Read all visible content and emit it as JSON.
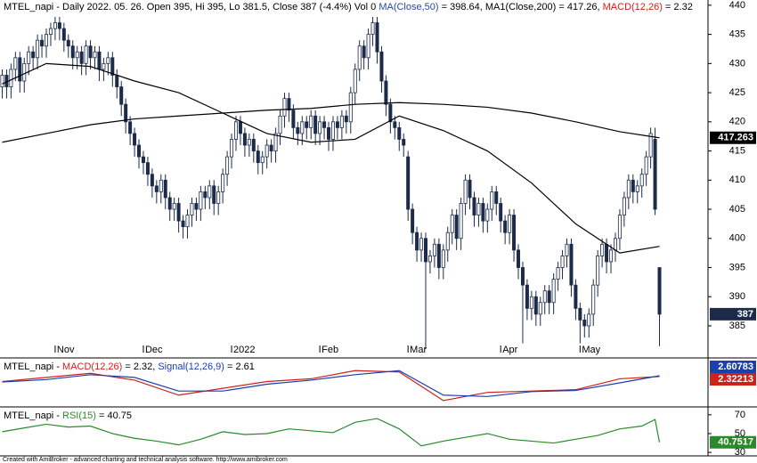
{
  "chart_data": [
    {
      "type": "candlestick",
      "title": [
        {
          "text": "MTEL_napi - Daily 2022. 05. 26. Open 395, Hi 395, Lo 381.5, Close 387 (-4.4%) Vol 0 ",
          "color": "#000000"
        },
        {
          "text": "MA(Close,50)",
          "color": "#2a4a9a"
        },
        {
          "text": " = 398.64, MA1(Close,200) = 417.26, ",
          "color": "#000000"
        },
        {
          "text": "MACD(12,26)",
          "color": "#d0201a"
        },
        {
          "text": " = 2.32",
          "color": "#000000"
        }
      ],
      "open": [
        426,
        428,
        426,
        429,
        431,
        427,
        430,
        432,
        431,
        434,
        433,
        435,
        436,
        437,
        436,
        434,
        433,
        431,
        432,
        430,
        433,
        431,
        432,
        429,
        430,
        431,
        428,
        426,
        423,
        420,
        418,
        416,
        414,
        413,
        411,
        409,
        408,
        410,
        407,
        405,
        406,
        403,
        402,
        404,
        406,
        405,
        408,
        407,
        409,
        406,
        408,
        411,
        414,
        417,
        420,
        418,
        416,
        417,
        415,
        413,
        414,
        416,
        415,
        418,
        421,
        424,
        422,
        419,
        418,
        420,
        419,
        421,
        418,
        420,
        419,
        417,
        420,
        419,
        421,
        420,
        425,
        429,
        433,
        431,
        435,
        437,
        432,
        427,
        423,
        420,
        419,
        417,
        414,
        405,
        401,
        398,
        400,
        396,
        397,
        399,
        395,
        398,
        401,
        404,
        400,
        406,
        410,
        407,
        404,
        406,
        403,
        405,
        408,
        406,
        403,
        401,
        404,
        398,
        395,
        392,
        388,
        390,
        387,
        389,
        391,
        389,
        393,
        395,
        397,
        399,
        392,
        388,
        386,
        385,
        387,
        392,
        397,
        399,
        396,
        398,
        400,
        404,
        407,
        410,
        408,
        409,
        411,
        414,
        417,
        395
      ],
      "high": [
        429,
        429,
        430,
        432,
        432,
        431,
        433,
        433,
        435,
        435,
        436,
        437,
        438,
        438,
        437,
        435,
        434,
        433,
        433,
        434,
        434,
        433,
        433,
        431,
        432,
        432,
        429,
        427,
        424,
        421,
        419,
        417,
        415,
        414,
        412,
        410,
        411,
        411,
        408,
        407,
        407,
        404,
        405,
        407,
        407,
        409,
        409,
        410,
        410,
        409,
        412,
        415,
        418,
        421,
        421,
        419,
        418,
        418,
        416,
        415,
        417,
        417,
        419,
        422,
        425,
        425,
        423,
        420,
        421,
        421,
        422,
        422,
        421,
        421,
        420,
        421,
        421,
        422,
        422,
        426,
        430,
        434,
        434,
        436,
        438,
        438,
        433,
        428,
        424,
        421,
        420,
        418,
        415,
        406,
        402,
        401,
        401,
        398,
        400,
        400,
        399,
        402,
        405,
        405,
        407,
        411,
        411,
        408,
        407,
        407,
        406,
        409,
        409,
        407,
        404,
        405,
        405,
        399,
        396,
        393,
        391,
        391,
        390,
        392,
        392,
        394,
        396,
        398,
        400,
        400,
        393,
        389,
        387,
        388,
        393,
        398,
        400,
        400,
        399,
        401,
        405,
        408,
        411,
        411,
        410,
        412,
        415,
        419,
        419,
        395
      ],
      "low": [
        424,
        424,
        424,
        427,
        425,
        425,
        428,
        429,
        429,
        431,
        431,
        433,
        434,
        434,
        432,
        431,
        429,
        429,
        428,
        428,
        429,
        429,
        427,
        427,
        428,
        426,
        424,
        421,
        418,
        416,
        414,
        412,
        411,
        409,
        407,
        406,
        406,
        405,
        403,
        403,
        401,
        400,
        400,
        402,
        403,
        403,
        405,
        405,
        404,
        404,
        406,
        409,
        412,
        415,
        416,
        414,
        414,
        413,
        411,
        411,
        412,
        413,
        413,
        416,
        419,
        420,
        417,
        416,
        416,
        417,
        417,
        416,
        416,
        417,
        415,
        415,
        417,
        417,
        418,
        418,
        423,
        427,
        429,
        429,
        433,
        430,
        425,
        421,
        418,
        417,
        415,
        414,
        403,
        399,
        396,
        396,
        381,
        394,
        395,
        393,
        393,
        396,
        399,
        398,
        398,
        404,
        405,
        402,
        402,
        401,
        401,
        403,
        404,
        401,
        399,
        399,
        396,
        393,
        382,
        386,
        386,
        385,
        385,
        387,
        387,
        387,
        391,
        393,
        395,
        390,
        386,
        382,
        383,
        383,
        385,
        390,
        395,
        394,
        394,
        396,
        398,
        402,
        405,
        406,
        406,
        407,
        409,
        412,
        404,
        381.5
      ],
      "close": [
        428,
        426,
        429,
        431,
        427,
        430,
        432,
        431,
        434,
        433,
        435,
        436,
        437,
        436,
        434,
        433,
        431,
        432,
        430,
        433,
        431,
        432,
        429,
        430,
        431,
        428,
        426,
        423,
        420,
        418,
        416,
        414,
        413,
        411,
        409,
        408,
        410,
        407,
        405,
        406,
        403,
        402,
        404,
        406,
        405,
        408,
        407,
        409,
        406,
        408,
        411,
        414,
        417,
        420,
        418,
        416,
        417,
        415,
        413,
        414,
        416,
        415,
        418,
        421,
        424,
        422,
        419,
        418,
        420,
        419,
        421,
        418,
        420,
        419,
        417,
        420,
        419,
        421,
        420,
        425,
        429,
        433,
        431,
        435,
        437,
        432,
        427,
        423,
        420,
        419,
        417,
        416,
        405,
        401,
        398,
        400,
        396,
        397,
        399,
        395,
        398,
        401,
        404,
        400,
        406,
        410,
        407,
        404,
        406,
        403,
        405,
        408,
        406,
        403,
        401,
        404,
        398,
        395,
        392,
        388,
        390,
        387,
        389,
        391,
        389,
        393,
        395,
        397,
        399,
        392,
        388,
        386,
        385,
        387,
        392,
        397,
        399,
        396,
        398,
        400,
        404,
        407,
        410,
        408,
        409,
        411,
        414,
        418,
        405,
        387
      ],
      "color_up": "#ffffff",
      "color_down": "#1c2b4a",
      "xlim": [
        -0.5,
        160
      ],
      "xticks": [
        {
          "value": 12,
          "label": "Nov"
        },
        {
          "value": 32,
          "label": "Dec"
        },
        {
          "value": 52,
          "label": "2022"
        },
        {
          "value": 72,
          "label": "Feb"
        },
        {
          "value": 92,
          "label": "Mar"
        },
        {
          "value": 113,
          "label": "Apr"
        },
        {
          "value": 131,
          "label": "May"
        }
      ],
      "ylim": [
        379.8,
        440.9
      ],
      "yticks": [
        385,
        390,
        395,
        400,
        405,
        410,
        415,
        420,
        425,
        430,
        435,
        440
      ],
      "series": [
        {
          "color": "#000000",
          "x": [
            0,
            10,
            20,
            30,
            40,
            50,
            60,
            70,
            80,
            90,
            100,
            110,
            120,
            130,
            140,
            149
          ],
          "values": [
            426.5,
            430,
            429.5,
            427,
            425,
            421.5,
            418,
            416.5,
            417,
            421,
            418.5,
            415,
            409.5,
            402.5,
            397.5,
            398.64
          ]
        },
        {
          "color": "#000000",
          "x": [
            0,
            10,
            20,
            30,
            40,
            50,
            60,
            70,
            80,
            90,
            100,
            110,
            120,
            130,
            140,
            149
          ],
          "values": [
            416.5,
            418,
            419.5,
            420.5,
            421,
            421.5,
            422,
            422.3,
            423,
            423.3,
            423,
            422.5,
            421.5,
            420,
            418.3,
            417.26
          ]
        }
      ],
      "tags": [
        {
          "value": 417.263,
          "color": "#000000"
        },
        {
          "value": 387,
          "color": "#1c2b4a"
        }
      ]
    },
    {
      "type": "line",
      "title": [
        {
          "text": "MTEL_napi - ",
          "color": "#000000"
        },
        {
          "text": "MACD(12,26)",
          "color": "#d0201a"
        },
        {
          "text": " = 2.32, ",
          "color": "#000000"
        },
        {
          "text": "Signal(12,26,9)",
          "color": "#1a3fb0"
        },
        {
          "text": " = 2.61",
          "color": "#000000"
        }
      ],
      "xlim": [
        -0.5,
        160
      ],
      "ylim": [
        -8.5,
        8.5
      ],
      "series": [
        {
          "color": "#d0201a",
          "x": [
            0,
            10,
            20,
            30,
            40,
            50,
            60,
            70,
            80,
            90,
            100,
            110,
            120,
            130,
            140,
            149
          ],
          "values": [
            0.5,
            2,
            3.5,
            1,
            -4.5,
            -2,
            0.5,
            1.5,
            4.5,
            4,
            -6.5,
            -3.5,
            -3,
            -2.5,
            1.5,
            2.32
          ]
        },
        {
          "color": "#1a3fb0",
          "x": [
            0,
            10,
            20,
            30,
            40,
            50,
            60,
            70,
            80,
            90,
            100,
            110,
            120,
            130,
            140,
            149
          ],
          "values": [
            0.3,
            1.2,
            3,
            2,
            -3,
            -3,
            -0.5,
            1,
            3,
            4.5,
            -4.5,
            -5,
            -3.2,
            -2.8,
            0,
            2.61
          ]
        }
      ],
      "tags": [
        {
          "value": 2.60783,
          "color": "#1a3fb0"
        },
        {
          "value": 2.32213,
          "color": "#d0201a"
        }
      ]
    },
    {
      "type": "line",
      "title": [
        {
          "text": "MTEL_napi - ",
          "color": "#000000"
        },
        {
          "text": "RSI(15)",
          "color": "#2a8a2a"
        },
        {
          "text": " = 40.75",
          "color": "#000000"
        }
      ],
      "xlim": [
        -0.5,
        160
      ],
      "ylim": [
        26.3,
        76.5
      ],
      "yticks": [
        30,
        50,
        70
      ],
      "series": [
        {
          "color": "#2a8a2a",
          "x": [
            0,
            5,
            10,
            15,
            20,
            25,
            30,
            35,
            40,
            45,
            50,
            55,
            60,
            65,
            70,
            75,
            80,
            85,
            90,
            95,
            100,
            105,
            110,
            115,
            120,
            125,
            130,
            135,
            140,
            145,
            148,
            149
          ],
          "values": [
            52,
            56,
            60,
            57,
            58,
            50,
            45,
            42,
            38,
            44,
            52,
            49,
            50,
            55,
            53,
            51,
            62,
            66,
            55,
            37,
            42,
            46,
            50,
            44,
            42,
            40,
            44,
            48,
            55,
            58,
            65,
            40.75
          ]
        }
      ],
      "tags": [
        {
          "value": 40.7517,
          "color": "#2a8a2a"
        }
      ]
    }
  ],
  "footer": "Created with AmiBroker - advanced charting and technical analysis software. http://www.amibroker.com"
}
